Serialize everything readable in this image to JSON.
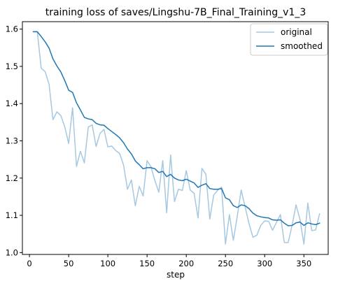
{
  "chart_data": {
    "type": "line",
    "title": "training loss of saves/Lingshu-7B_Final_Training_v1_3",
    "xlabel": "step",
    "ylabel": "",
    "xlim": [
      -9,
      381
    ],
    "ylim": [
      0.995,
      1.62
    ],
    "x_ticks": [
      0,
      50,
      100,
      150,
      200,
      250,
      300,
      350
    ],
    "y_ticks": [
      1.0,
      1.1,
      1.2,
      1.3,
      1.4,
      1.5,
      1.6
    ],
    "y_tick_labels": [
      "1.0",
      "1.1",
      "1.2",
      "1.3",
      "1.4",
      "1.5",
      "1.6"
    ],
    "grid": false,
    "legend": "top-right",
    "series": [
      {
        "name": "original",
        "color": "#a6c8e0",
        "x": [
          5,
          10,
          15,
          20,
          25,
          30,
          35,
          40,
          45,
          50,
          55,
          60,
          65,
          70,
          75,
          80,
          85,
          90,
          95,
          100,
          105,
          110,
          115,
          120,
          125,
          130,
          135,
          140,
          145,
          150,
          155,
          160,
          165,
          170,
          175,
          180,
          185,
          190,
          195,
          200,
          205,
          210,
          215,
          220,
          225,
          230,
          235,
          240,
          245,
          250,
          255,
          260,
          265,
          270,
          275,
          280,
          285,
          290,
          295,
          300,
          305,
          310,
          315,
          320,
          325,
          330,
          335,
          340,
          345,
          350,
          355,
          360,
          365,
          370
        ],
        "y": [
          1.593,
          1.593,
          1.495,
          1.486,
          1.452,
          1.357,
          1.378,
          1.368,
          1.338,
          1.293,
          1.389,
          1.231,
          1.272,
          1.241,
          1.337,
          1.343,
          1.285,
          1.32,
          1.331,
          1.284,
          1.286,
          1.274,
          1.266,
          1.235,
          1.17,
          1.195,
          1.126,
          1.178,
          1.152,
          1.247,
          1.23,
          1.193,
          1.162,
          1.247,
          1.107,
          1.262,
          1.137,
          1.17,
          1.167,
          1.22,
          1.168,
          1.159,
          1.093,
          1.226,
          1.21,
          1.09,
          1.155,
          1.167,
          1.176,
          1.023,
          1.102,
          1.033,
          1.097,
          1.168,
          1.123,
          1.078,
          1.041,
          1.047,
          1.073,
          1.085,
          1.084,
          1.06,
          1.081,
          1.102,
          1.027,
          1.027,
          1.074,
          1.128,
          1.089,
          1.023,
          1.133,
          1.059,
          1.061,
          1.104
        ]
      },
      {
        "name": "smoothed",
        "color": "#1f77b4",
        "x": [
          5,
          10,
          15,
          20,
          25,
          30,
          35,
          40,
          45,
          50,
          55,
          60,
          65,
          70,
          75,
          80,
          85,
          90,
          95,
          100,
          105,
          110,
          115,
          120,
          125,
          130,
          135,
          140,
          145,
          150,
          155,
          160,
          165,
          170,
          175,
          180,
          185,
          190,
          195,
          200,
          205,
          210,
          215,
          220,
          225,
          230,
          235,
          240,
          245,
          250,
          255,
          260,
          265,
          270,
          275,
          280,
          285,
          290,
          295,
          300,
          305,
          310,
          315,
          320,
          325,
          330,
          335,
          340,
          345,
          350,
          355,
          360,
          365,
          370
        ],
        "y": [
          1.593,
          1.593,
          1.58,
          1.566,
          1.549,
          1.52,
          1.501,
          1.485,
          1.462,
          1.436,
          1.43,
          1.402,
          1.383,
          1.363,
          1.359,
          1.357,
          1.347,
          1.343,
          1.342,
          1.333,
          1.325,
          1.317,
          1.308,
          1.295,
          1.278,
          1.265,
          1.246,
          1.236,
          1.225,
          1.228,
          1.228,
          1.225,
          1.215,
          1.218,
          1.204,
          1.21,
          1.2,
          1.195,
          1.193,
          1.197,
          1.192,
          1.187,
          1.175,
          1.181,
          1.185,
          1.172,
          1.17,
          1.17,
          1.172,
          1.147,
          1.142,
          1.126,
          1.121,
          1.128,
          1.126,
          1.118,
          1.106,
          1.099,
          1.096,
          1.094,
          1.093,
          1.088,
          1.087,
          1.088,
          1.079,
          1.072,
          1.073,
          1.08,
          1.082,
          1.073,
          1.08,
          1.077,
          1.075,
          1.079
        ]
      }
    ]
  }
}
